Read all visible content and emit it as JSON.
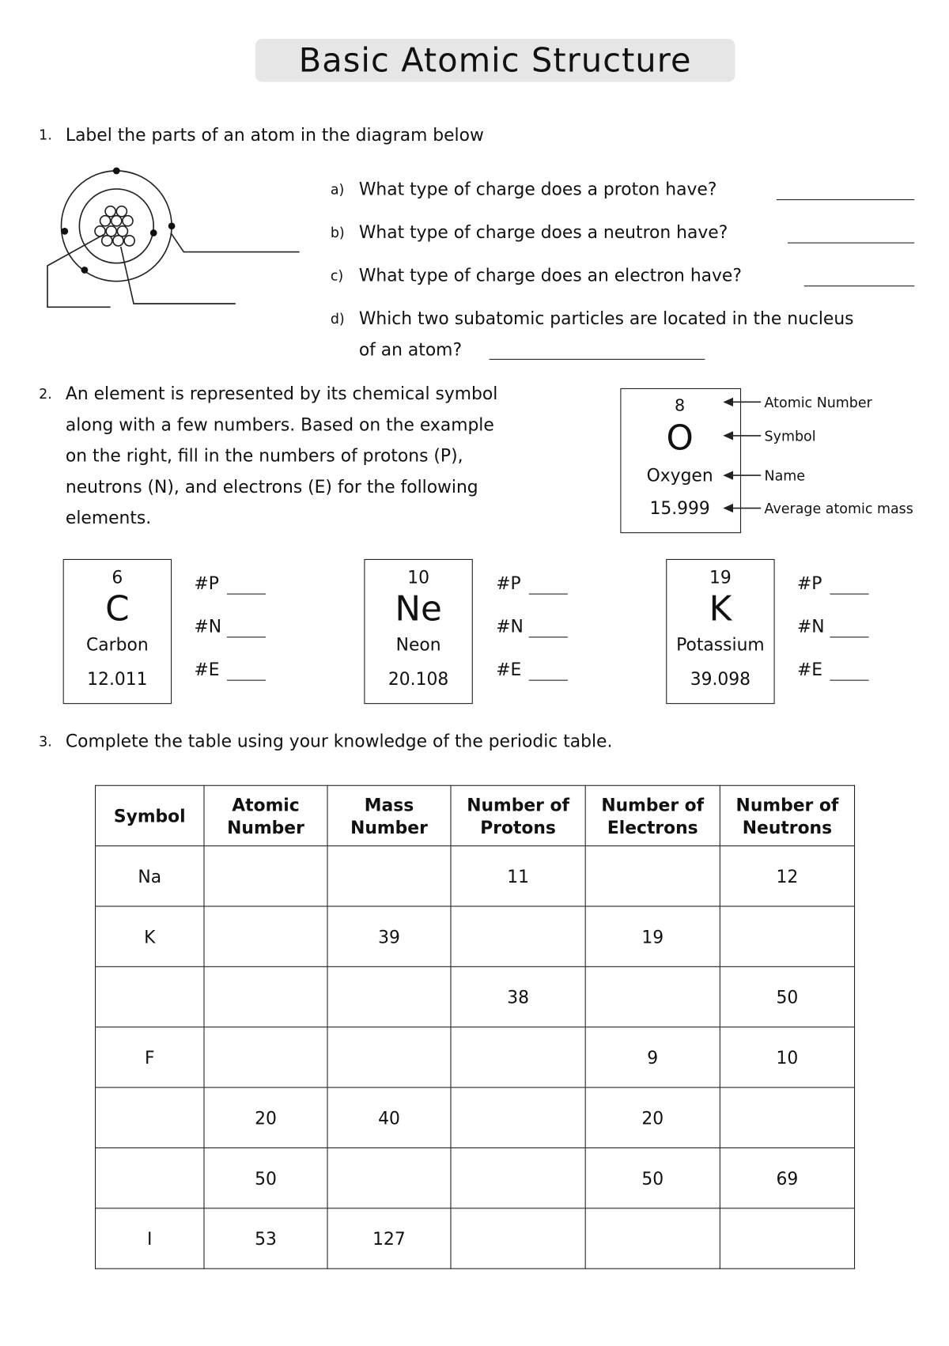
{
  "title": "Basic Atomic Structure",
  "q1": {
    "number": "1.",
    "text": "Label the parts of an atom in the diagram below",
    "subs": [
      {
        "letter": "a)",
        "text": "What type of charge does a proton have?"
      },
      {
        "letter": "b)",
        "text": "What type of charge does a neutron have?"
      },
      {
        "letter": "c)",
        "text": "What type of charge does an electron have?"
      },
      {
        "letter": "d)",
        "text": "Which two subatomic particles are located in the nucleus",
        "text2": "of an atom?"
      }
    ]
  },
  "q2": {
    "number": "2.",
    "lines": [
      "An element is represented by its chemical symbol",
      "along with a few numbers. Based on the example",
      "on the right, fill in the numbers of protons (P),",
      "neutrons (N), and electrons (E) for the following",
      "elements."
    ],
    "example": {
      "atomic_number": "8",
      "symbol": "O",
      "name": "Oxygen",
      "mass": "15.999",
      "annotations": [
        "Atomic Number",
        "Symbol",
        "Name",
        "Average atomic mass"
      ]
    },
    "elements": [
      {
        "atomic_number": "6",
        "symbol": "C",
        "name": "Carbon",
        "mass": "12.011"
      },
      {
        "atomic_number": "10",
        "symbol": "Ne",
        "name": "Neon",
        "mass": "20.108"
      },
      {
        "atomic_number": "19",
        "symbol": "K",
        "name": "Potassium",
        "mass": "39.098"
      }
    ],
    "fields": [
      "#P",
      "#N",
      "#E"
    ]
  },
  "q3": {
    "number": "3.",
    "text": "Complete the table using your knowledge of the periodic table.",
    "headers": [
      [
        "Symbol",
        ""
      ],
      [
        "Atomic",
        "Number"
      ],
      [
        "Mass",
        "Number"
      ],
      [
        "Number of",
        "Protons"
      ],
      [
        "Number of",
        "Electrons"
      ],
      [
        "Number of",
        "Neutrons"
      ]
    ],
    "rows": [
      [
        "Na",
        "",
        "",
        "11",
        "",
        "12"
      ],
      [
        "K",
        "",
        "39",
        "",
        "19",
        ""
      ],
      [
        "",
        "",
        "",
        "38",
        "",
        "50"
      ],
      [
        "F",
        "",
        "",
        "",
        "9",
        "10"
      ],
      [
        "",
        "20",
        "40",
        "",
        "20",
        ""
      ],
      [
        "",
        "50",
        "",
        "",
        "50",
        "69"
      ],
      [
        "I",
        "53",
        "127",
        "",
        "",
        ""
      ]
    ]
  }
}
